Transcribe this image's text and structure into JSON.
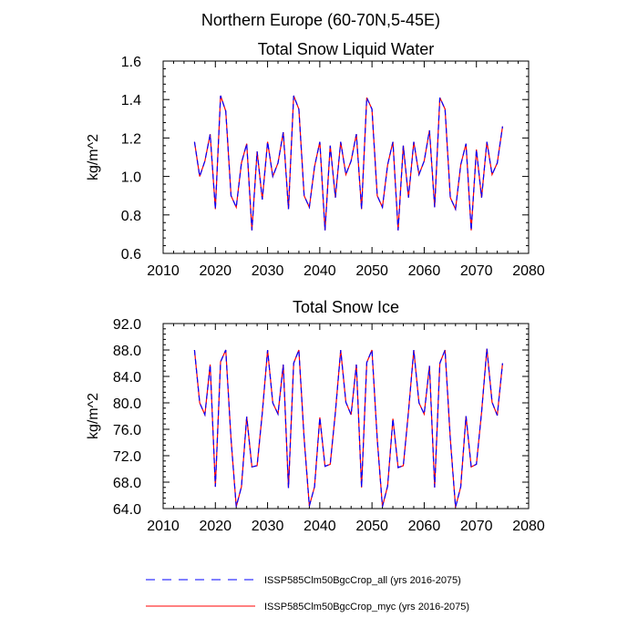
{
  "page_title": "Northern Europe (60-70N,5-45E)",
  "colors": {
    "blue": "#0000ff",
    "red": "#ff0000",
    "axis": "#000000"
  },
  "legend": [
    {
      "label": "ISSP585Clm50BgcCrop_all (yrs 2016-2075)",
      "color": "#0000ff",
      "style": "dashed"
    },
    {
      "label": "ISSP585Clm50BgcCrop_myc (yrs 2016-2075)",
      "color": "#ff0000",
      "style": "solid"
    }
  ],
  "chart_data": [
    {
      "type": "line",
      "title": "Total Snow Liquid Water",
      "xlabel": "",
      "ylabel": "kg/m^2",
      "xlim": [
        2010,
        2080
      ],
      "ylim": [
        0.6,
        1.6
      ],
      "xticks": [
        "2010",
        "2020",
        "2030",
        "2040",
        "2050",
        "2060",
        "2070",
        "2080"
      ],
      "yticks": [
        "0.6",
        "0.8",
        "1.0",
        "1.2",
        "1.4",
        "1.6"
      ],
      "x": [
        2016,
        2017,
        2018,
        2019,
        2020,
        2021,
        2022,
        2023,
        2024,
        2025,
        2026,
        2027,
        2028,
        2029,
        2030,
        2031,
        2032,
        2033,
        2034,
        2035,
        2036,
        2037,
        2038,
        2039,
        2040,
        2041,
        2042,
        2043,
        2044,
        2045,
        2046,
        2047,
        2048,
        2049,
        2050,
        2051,
        2052,
        2053,
        2054,
        2055,
        2056,
        2057,
        2058,
        2059,
        2060,
        2061,
        2062,
        2063,
        2064,
        2065,
        2066,
        2067,
        2068,
        2069,
        2070,
        2071,
        2072,
        2073,
        2074,
        2075
      ],
      "series": [
        {
          "name": "ISSP585Clm50BgcCrop_all (yrs 2016-2075)",
          "values": [
            1.18,
            1.0,
            1.08,
            1.22,
            0.83,
            1.42,
            1.34,
            0.9,
            0.84,
            1.07,
            1.17,
            0.72,
            1.13,
            0.88,
            1.18,
            1.0,
            1.07,
            1.23,
            0.83,
            1.42,
            1.35,
            0.9,
            0.84,
            1.05,
            1.18,
            0.72,
            1.16,
            0.89,
            1.18,
            1.01,
            1.08,
            1.22,
            0.83,
            1.41,
            1.35,
            0.9,
            0.84,
            1.06,
            1.18,
            0.72,
            1.16,
            0.89,
            1.18,
            1.01,
            1.08,
            1.24,
            0.84,
            1.41,
            1.35,
            0.89,
            0.83,
            1.06,
            1.17,
            0.72,
            1.14,
            0.89,
            1.18,
            1.01,
            1.07,
            1.26
          ]
        },
        {
          "name": "ISSP585Clm50BgcCrop_myc (yrs 2016-2075)",
          "values": [
            1.18,
            1.0,
            1.08,
            1.22,
            0.83,
            1.42,
            1.34,
            0.9,
            0.84,
            1.07,
            1.17,
            0.72,
            1.13,
            0.88,
            1.18,
            1.0,
            1.07,
            1.23,
            0.83,
            1.42,
            1.35,
            0.9,
            0.84,
            1.05,
            1.18,
            0.72,
            1.16,
            0.89,
            1.18,
            1.01,
            1.08,
            1.22,
            0.83,
            1.41,
            1.35,
            0.9,
            0.84,
            1.06,
            1.18,
            0.72,
            1.16,
            0.89,
            1.18,
            1.01,
            1.08,
            1.24,
            0.84,
            1.41,
            1.35,
            0.89,
            0.83,
            1.06,
            1.17,
            0.72,
            1.14,
            0.89,
            1.18,
            1.01,
            1.07,
            1.26
          ]
        }
      ]
    },
    {
      "type": "line",
      "title": "Total Snow Ice",
      "xlabel": "",
      "ylabel": "kg/m^2",
      "xlim": [
        2010,
        2080
      ],
      "ylim": [
        64.0,
        92.0
      ],
      "xticks": [
        "2010",
        "2020",
        "2030",
        "2040",
        "2050",
        "2060",
        "2070",
        "2080"
      ],
      "yticks": [
        "64.0",
        "68.0",
        "72.0",
        "76.0",
        "80.0",
        "84.0",
        "88.0",
        "92.0"
      ],
      "x": [
        2016,
        2017,
        2018,
        2019,
        2020,
        2021,
        2022,
        2023,
        2024,
        2025,
        2026,
        2027,
        2028,
        2029,
        2030,
        2031,
        2032,
        2033,
        2034,
        2035,
        2036,
        2037,
        2038,
        2039,
        2040,
        2041,
        2042,
        2043,
        2044,
        2045,
        2046,
        2047,
        2048,
        2049,
        2050,
        2051,
        2052,
        2053,
        2054,
        2055,
        2056,
        2057,
        2058,
        2059,
        2060,
        2061,
        2062,
        2063,
        2064,
        2065,
        2066,
        2067,
        2068,
        2069,
        2070,
        2071,
        2072,
        2073,
        2074,
        2075
      ],
      "series": [
        {
          "name": "ISSP585Clm50BgcCrop_all (yrs 2016-2075)",
          "values": [
            88.0,
            80.0,
            78.2,
            85.8,
            67.3,
            86.2,
            88.0,
            74.5,
            64.3,
            67.3,
            77.9,
            70.3,
            70.5,
            78.5,
            88.0,
            80.0,
            78.3,
            85.8,
            67.1,
            86.0,
            88.0,
            74.6,
            64.4,
            67.3,
            77.8,
            70.4,
            70.7,
            78.6,
            88.0,
            80.1,
            78.2,
            85.8,
            67.2,
            86.1,
            88.0,
            74.5,
            64.3,
            67.4,
            77.6,
            70.2,
            70.5,
            78.7,
            88.0,
            80.0,
            78.3,
            85.6,
            67.2,
            86.0,
            88.0,
            74.5,
            64.2,
            67.3,
            78.0,
            70.3,
            70.7,
            78.6,
            88.2,
            80.1,
            78.1,
            86.0
          ]
        },
        {
          "name": "ISSP585Clm50BgcCrop_myc (yrs 2016-2075)",
          "values": [
            88.0,
            80.0,
            78.2,
            85.8,
            67.3,
            86.2,
            88.0,
            74.5,
            64.3,
            67.3,
            77.9,
            70.3,
            70.5,
            78.5,
            88.0,
            80.0,
            78.3,
            85.8,
            67.1,
            86.0,
            88.0,
            74.6,
            64.4,
            67.3,
            77.8,
            70.4,
            70.7,
            78.6,
            88.0,
            80.1,
            78.2,
            85.8,
            67.2,
            86.1,
            88.0,
            74.5,
            64.3,
            67.4,
            77.6,
            70.2,
            70.5,
            78.7,
            88.0,
            80.0,
            78.3,
            85.6,
            67.2,
            86.0,
            88.0,
            74.5,
            64.2,
            67.3,
            78.0,
            70.3,
            70.7,
            78.6,
            88.2,
            80.1,
            78.1,
            86.0
          ]
        }
      ]
    }
  ]
}
